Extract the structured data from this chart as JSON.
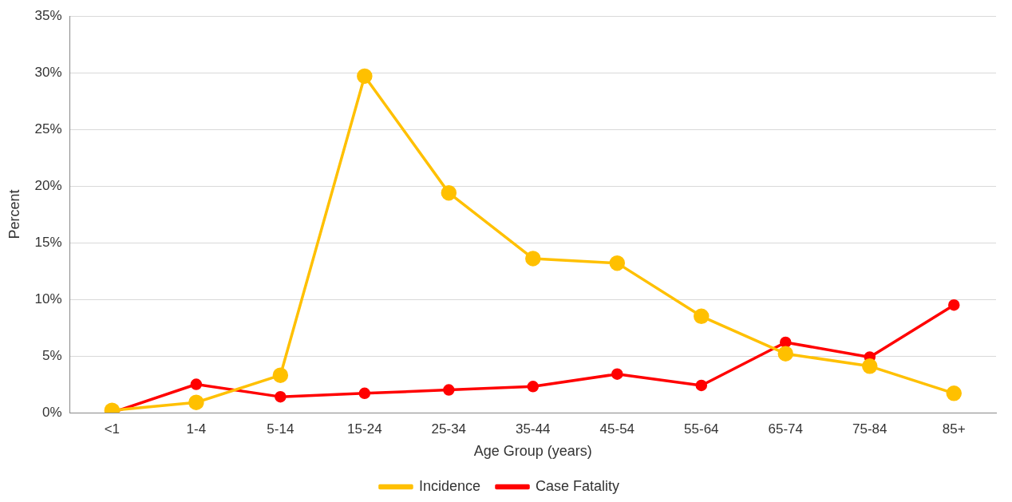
{
  "chart_data": {
    "type": "line",
    "xlabel": "Age Group (years)",
    "ylabel": "Percent",
    "categories": [
      "<1",
      "1-4",
      "5-14",
      "15-24",
      "25-34",
      "35-44",
      "45-54",
      "55-64",
      "65-74",
      "75-84",
      "85+"
    ],
    "series": [
      {
        "name": "Incidence",
        "color": "#ffc000",
        "values": [
          0.2,
          0.9,
          3.3,
          29.7,
          19.4,
          13.6,
          13.2,
          8.5,
          5.2,
          4.1,
          1.7
        ]
      },
      {
        "name": "Case Fatality",
        "color": "#ff0000",
        "values": [
          0,
          2.5,
          1.4,
          1.7,
          2.0,
          2.3,
          3.4,
          2.4,
          6.2,
          4.9,
          9.5
        ]
      }
    ],
    "ylim": [
      0,
      35
    ],
    "yticks": [
      {
        "value": 0,
        "label": "0%"
      },
      {
        "value": 5,
        "label": "5%"
      },
      {
        "value": 10,
        "label": "10%"
      },
      {
        "value": 15,
        "label": "15%"
      },
      {
        "value": 20,
        "label": "20%"
      },
      {
        "value": 25,
        "label": "25%"
      },
      {
        "value": 30,
        "label": "30%"
      },
      {
        "value": 35,
        "label": "35%"
      }
    ],
    "grid": "y",
    "legend": "bottom",
    "marker": "circle",
    "line_style": "solid"
  }
}
